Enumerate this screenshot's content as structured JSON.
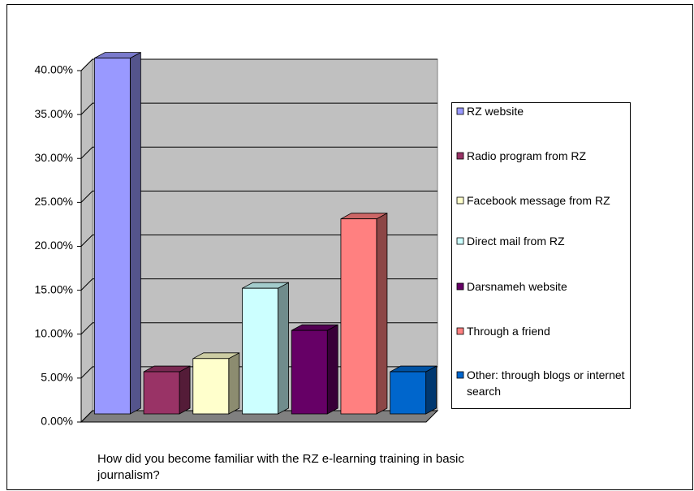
{
  "chart_data": {
    "type": "bar3d",
    "title": "How did you become familiar with the RZ e-learning training in basic journalism?",
    "categories": [
      "RZ website",
      "Radio program from RZ",
      "Facebook message from RZ",
      "Direct mail from RZ",
      "Darsnameh website",
      "Through a friend",
      "Other: through blogs or internet search"
    ],
    "values": [
      40.5,
      4.8,
      6.3,
      14.3,
      9.5,
      22.2,
      4.8
    ],
    "colors": [
      "#9999ff",
      "#993366",
      "#ffffcc",
      "#ccffff",
      "#660066",
      "#ff8080",
      "#0066cc"
    ],
    "ylim": [
      0,
      40
    ],
    "yticks": [
      {
        "value": 0,
        "label": "0.00%"
      },
      {
        "value": 5,
        "label": "5.00%"
      },
      {
        "value": 10,
        "label": "10.00%"
      },
      {
        "value": 15,
        "label": "15.00%"
      },
      {
        "value": 20,
        "label": "20.00%"
      },
      {
        "value": 25,
        "label": "25.00%"
      },
      {
        "value": 30,
        "label": "30.00%"
      },
      {
        "value": 35,
        "label": "35.00%"
      },
      {
        "value": 40,
        "label": "40.00%"
      }
    ],
    "grid": true,
    "legend": "right"
  }
}
